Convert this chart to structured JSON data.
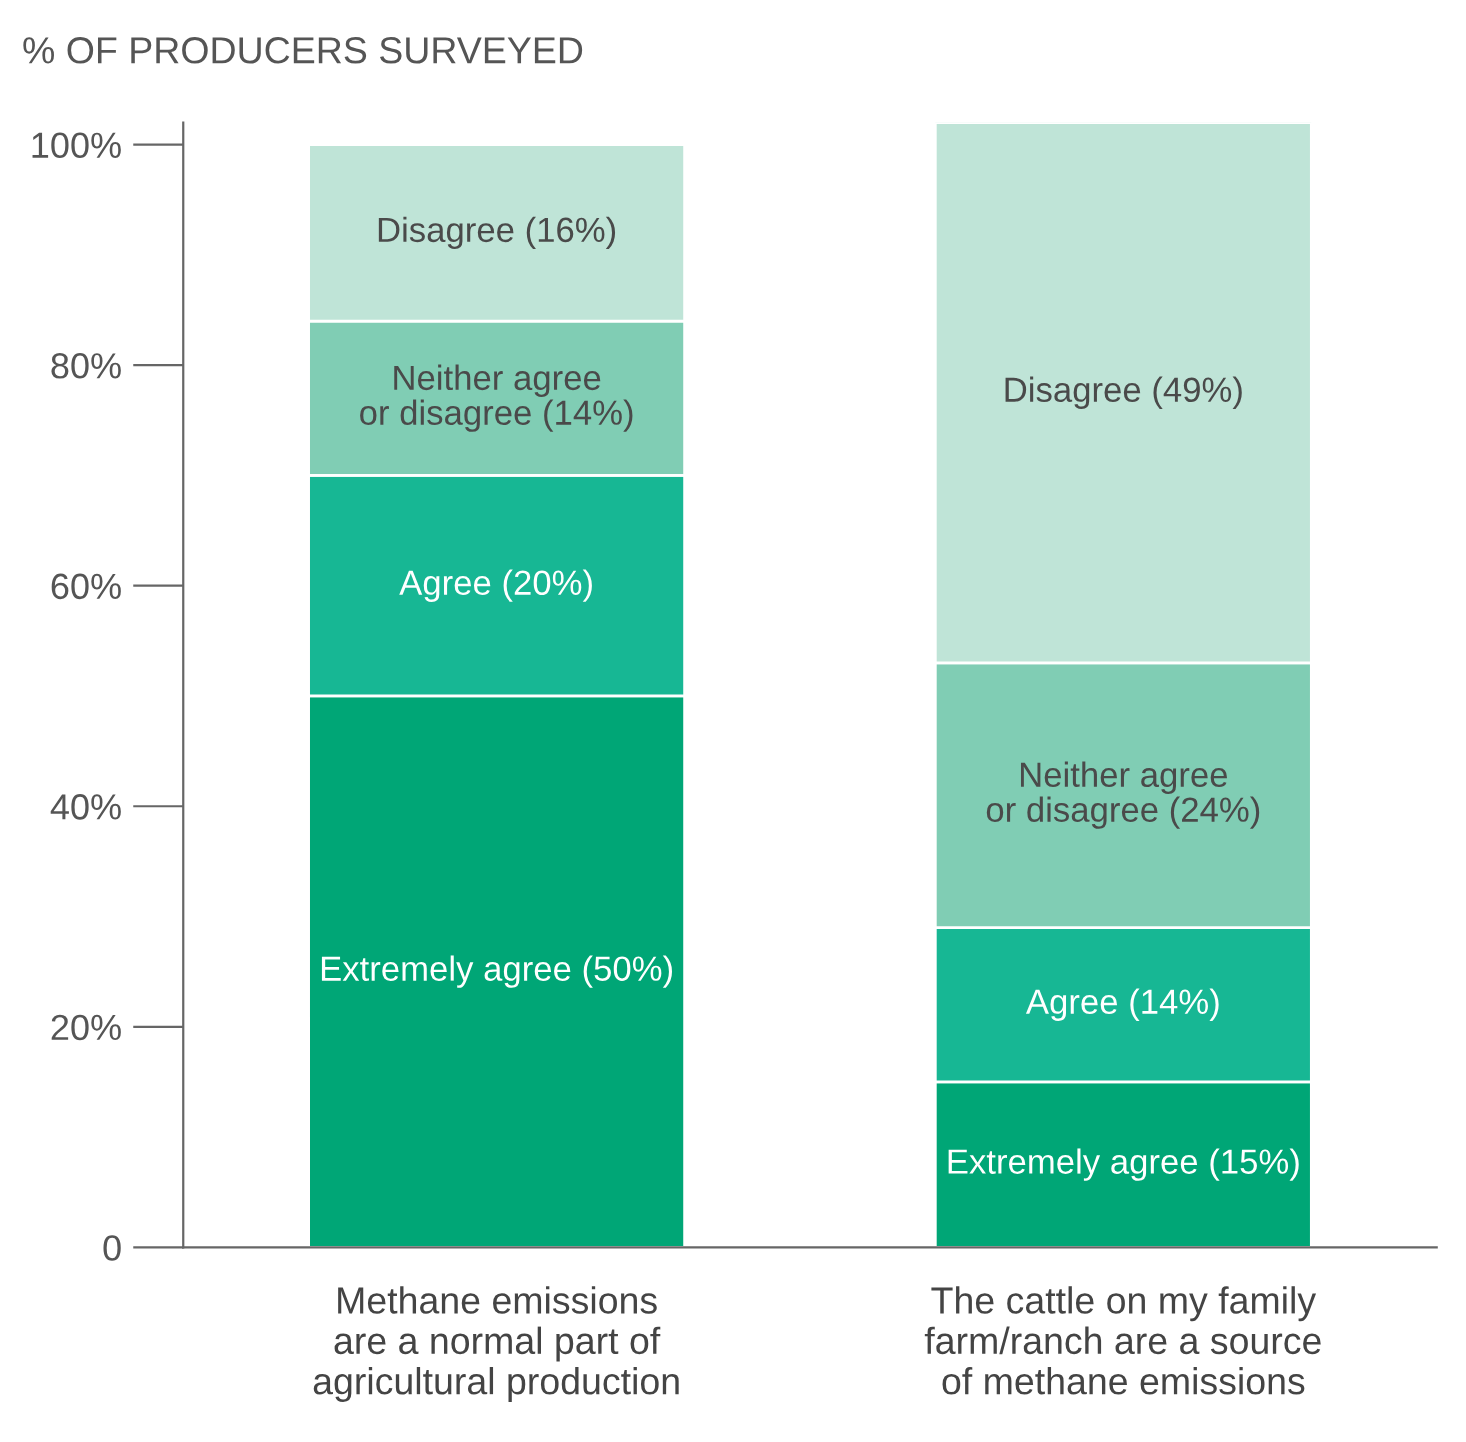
{
  "chart_data": {
    "type": "bar",
    "stacked": true,
    "ylabel": "% OF PRODUCERS SURVEYED",
    "categories": [
      "Methane emissions\nare a normal part of\nagricultural production",
      "The cattle on my family\nfarm/ranch are a source\nof methane emissions"
    ],
    "series": [
      {
        "color": "#00a676",
        "values": [
          50,
          15
        ],
        "value_labels": [
          "Extremely agree (50%)",
          "Extremely agree (15%)"
        ]
      },
      {
        "color": "#17b794",
        "values": [
          20,
          14
        ],
        "value_labels": [
          "Agree (20%)",
          "Agree (14%)"
        ]
      },
      {
        "color": "#80cdb4",
        "values": [
          14,
          24
        ],
        "value_labels": [
          "Neither agree\nor disagree (14%)",
          "Neither agree\nor disagree (24%)"
        ]
      },
      {
        "color": "#bfe4d7",
        "values": [
          16,
          49
        ],
        "value_labels": [
          "Disagree (16%)",
          "Disagree (49%)"
        ]
      }
    ],
    "ylim": [
      0,
      102
    ],
    "yticks": [
      {
        "value": 0,
        "label": "0"
      },
      {
        "value": 20,
        "label": "20%"
      },
      {
        "value": 40,
        "label": "40%"
      },
      {
        "value": 60,
        "label": "60%"
      },
      {
        "value": 80,
        "label": "80%"
      },
      {
        "value": 100,
        "label": "100%"
      }
    ],
    "grid": false,
    "legend": false
  }
}
